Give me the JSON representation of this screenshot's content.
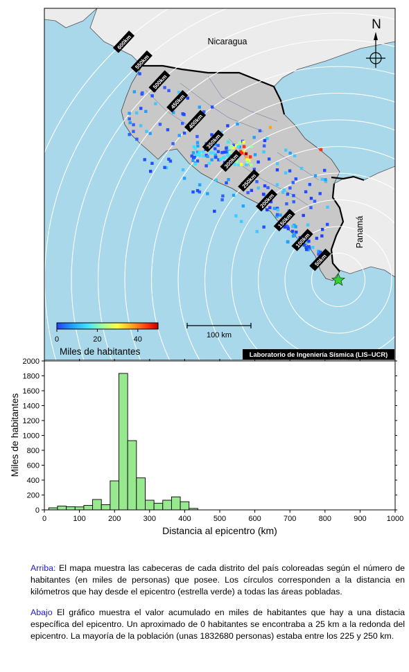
{
  "map": {
    "labels": {
      "nicaragua": "Nicaragua",
      "panama": "Panamá",
      "north": "N",
      "scale": "100 km",
      "credit": "Laboratorio de Ingeniería Sísmica (LIS–UCR)"
    },
    "rings": [
      "50km",
      "100km",
      "150km",
      "200km",
      "250km",
      "300km",
      "350km",
      "400km",
      "450km",
      "500km",
      "550km",
      "600km"
    ],
    "colorbar": {
      "title": "Miles de habitantes",
      "ticks": [
        "0",
        "20",
        "40"
      ],
      "range": [
        0,
        50
      ],
      "colors": [
        "#2040ff",
        "#20a0ff",
        "#40e0ff",
        "#a0ffa0",
        "#ffff40",
        "#ffa020",
        "#ff3010",
        "#c00000"
      ]
    },
    "colors": {
      "ocean": "#a8d8ea",
      "costa_rica": "#c8c8c8",
      "neighbors": "#ececec",
      "epicenter": "#38d038"
    },
    "icons": {
      "epicenter": "star-icon",
      "compass": "compass-rose-icon"
    }
  },
  "chart_data": {
    "type": "bar",
    "xlabel": "Distancia al epicentro (km)",
    "ylabel": "Miles de habitantes",
    "xlim": [
      0,
      1000
    ],
    "ylim": [
      0,
      2000
    ],
    "x_ticks": [
      0,
      100,
      200,
      300,
      400,
      500,
      600,
      700,
      800,
      900,
      1000
    ],
    "y_ticks": [
      0,
      200,
      400,
      600,
      800,
      1000,
      1200,
      1400,
      1600,
      1800,
      2000
    ],
    "bin_width": 25,
    "bins": [
      {
        "x": 25,
        "value": 28
      },
      {
        "x": 50,
        "value": 52
      },
      {
        "x": 75,
        "value": 42
      },
      {
        "x": 100,
        "value": 40
      },
      {
        "x": 125,
        "value": 60
      },
      {
        "x": 150,
        "value": 140
      },
      {
        "x": 175,
        "value": 70
      },
      {
        "x": 200,
        "value": 390
      },
      {
        "x": 225,
        "value": 1832.68
      },
      {
        "x": 250,
        "value": 930
      },
      {
        "x": 275,
        "value": 430
      },
      {
        "x": 300,
        "value": 130
      },
      {
        "x": 325,
        "value": 90
      },
      {
        "x": 350,
        "value": 130
      },
      {
        "x": 375,
        "value": 175
      },
      {
        "x": 400,
        "value": 110
      },
      {
        "x": 425,
        "value": 20
      }
    ],
    "bar_color": "#98e890",
    "grid": false
  },
  "captions": {
    "top_label": "Arriba:",
    "top_text": " El mapa muestra las cabeceras de cada distrito del país coloreadas según el número de habitantes (en miles de personas) que posee.  Los círculos corresponden a la distancia en kilómetros que hay desde el epicentro (estrella verde) a todas las áreas pobladas.",
    "bottom_label": "Abajo",
    "bottom_text": " El gráfico muestra el valor acumulado en miles de habitantes que hay a una distacia específica del epicentro.  Un aproximado de 0 habitantes se encontraba a 25 km a la redonda del epicentro.  La mayoría de la población (unas 1832680 personas) estaba entre los 225 y 250 km."
  }
}
